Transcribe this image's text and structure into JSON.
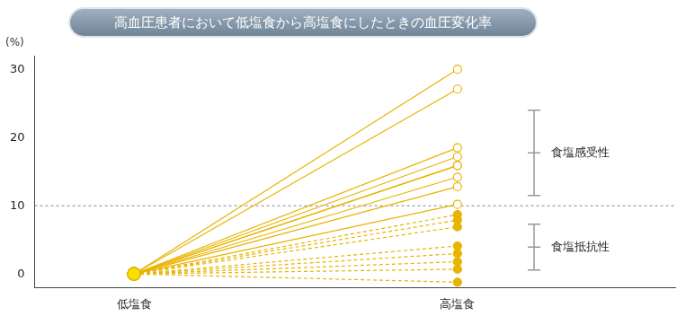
{
  "chart_data": {
    "type": "line",
    "title": "高血圧患者において低塩食から高塩食にしたときの血圧変化率",
    "y_label": "(%)",
    "categories": [
      "低塩食",
      "高塩食"
    ],
    "ylim": [
      -2,
      32
    ],
    "yticks": [
      0,
      10,
      20,
      30
    ],
    "grid": false,
    "legend": false,
    "color": "#e8b400",
    "reference_line": {
      "y": 10,
      "line_style": "dashed"
    },
    "annotations": [
      {
        "text": "食塩感受性",
        "y_range": [
          11.5,
          24
        ]
      },
      {
        "text": "食塩抵抗性",
        "y_range": [
          0.6,
          7.3
        ]
      }
    ],
    "series": [
      {
        "values": [
          0,
          30
        ],
        "marker": "open_circle",
        "line_style": "solid"
      },
      {
        "values": [
          0,
          27.1
        ],
        "marker": "open_circle",
        "line_style": "solid"
      },
      {
        "values": [
          0,
          18.5
        ],
        "marker": "open_circle",
        "line_style": "solid"
      },
      {
        "values": [
          0,
          17.2
        ],
        "marker": "open_circle",
        "line_style": "solid"
      },
      {
        "values": [
          0,
          15.9
        ],
        "marker": "open_circle",
        "line_style": "solid"
      },
      {
        "values": [
          0,
          15.9
        ],
        "marker": "open_circle",
        "line_style": "solid"
      },
      {
        "values": [
          0,
          14.2
        ],
        "marker": "open_circle",
        "line_style": "solid"
      },
      {
        "values": [
          0,
          12.8
        ],
        "marker": "open_circle",
        "line_style": "solid"
      },
      {
        "values": [
          0,
          10.2
        ],
        "marker": "open_circle",
        "line_style": "solid"
      },
      {
        "values": [
          0,
          8.7
        ],
        "marker": "filled_circle",
        "line_style": "dashed"
      },
      {
        "values": [
          0,
          7.9
        ],
        "marker": "filled_circle",
        "line_style": "dashed"
      },
      {
        "values": [
          0,
          6.9
        ],
        "marker": "filled_circle",
        "line_style": "dashed"
      },
      {
        "values": [
          0,
          4.1
        ],
        "marker": "filled_circle",
        "line_style": "dashed"
      },
      {
        "values": [
          0,
          3.0
        ],
        "marker": "filled_circle",
        "line_style": "dashed"
      },
      {
        "values": [
          0,
          1.8
        ],
        "marker": "filled_circle",
        "line_style": "dashed"
      },
      {
        "values": [
          0,
          0.7
        ],
        "marker": "filled_circle",
        "line_style": "dashed"
      },
      {
        "values": [
          0,
          -1.2
        ],
        "marker": "filled_circle",
        "line_style": "dashed"
      }
    ]
  }
}
